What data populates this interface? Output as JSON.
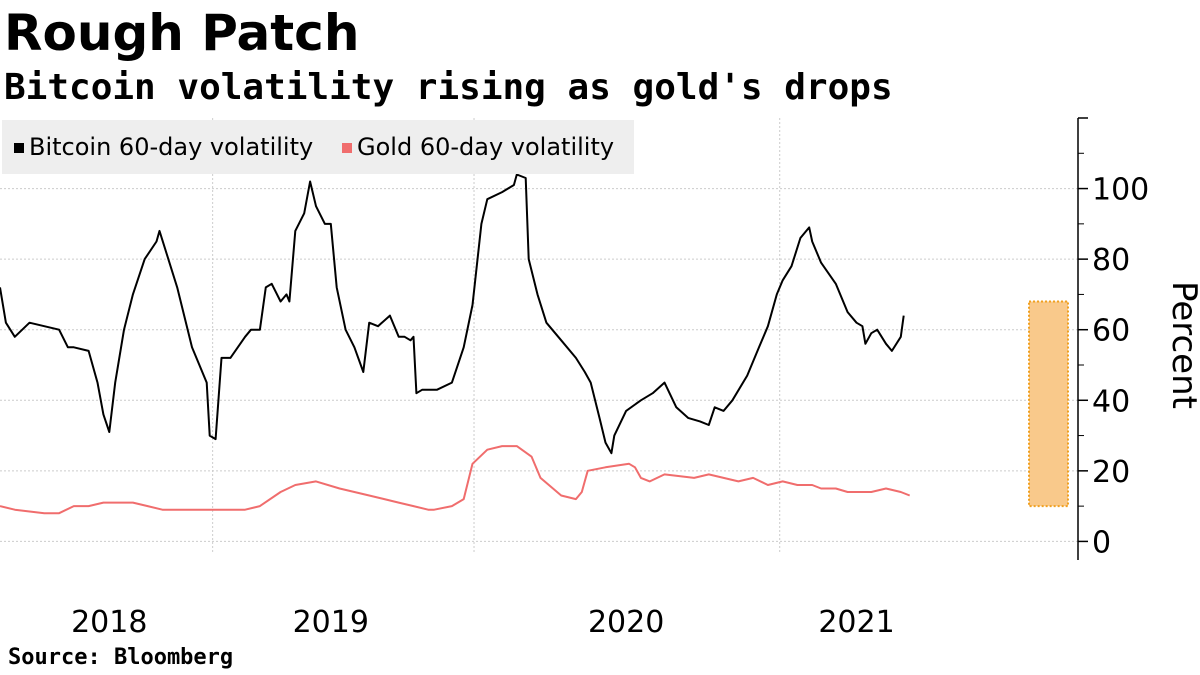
{
  "header": {
    "title": "Rough Patch",
    "subtitle": "Bitcoin volatility rising as gold's drops"
  },
  "footer": {
    "source": "Source: Bloomberg"
  },
  "colors": {
    "bitcoin": "#000000",
    "gold": "#f06d6d",
    "highlight_fill": "#f9c98b",
    "highlight_border": "#f0a020",
    "grid": "#cccccc",
    "legend_bg": "#eeeeee"
  },
  "chart_data": {
    "type": "line",
    "title": "Rough Patch",
    "subtitle": "Bitcoin volatility rising as gold's drops",
    "ylabel": "Percent",
    "xlabel": "",
    "ylim": [
      -3,
      120
    ],
    "yticks": [
      0,
      20,
      40,
      60,
      80,
      100
    ],
    "xlim": [
      2017.55,
      2021.2
    ],
    "xticks": [
      {
        "label": "2018",
        "value": 2017.92
      },
      {
        "label": "2019",
        "value": 2018.67
      },
      {
        "label": "2020",
        "value": 2019.67
      },
      {
        "label": "2021",
        "value": 2020.45
      }
    ],
    "grid": true,
    "legend_position": "top-left",
    "highlight_range": {
      "x": [
        2021.05,
        2021.15
      ],
      "y": [
        10,
        68
      ]
    },
    "series": [
      {
        "name": "Bitcoin 60-day volatility",
        "color": "#000000",
        "points": [
          [
            2017.55,
            72
          ],
          [
            2017.57,
            62
          ],
          [
            2017.6,
            58
          ],
          [
            2017.65,
            62
          ],
          [
            2017.7,
            61
          ],
          [
            2017.75,
            60
          ],
          [
            2017.78,
            55
          ],
          [
            2017.8,
            55
          ],
          [
            2017.85,
            54
          ],
          [
            2017.88,
            45
          ],
          [
            2017.9,
            36
          ],
          [
            2017.92,
            31
          ],
          [
            2017.94,
            45
          ],
          [
            2017.97,
            60
          ],
          [
            2018.0,
            70
          ],
          [
            2018.04,
            80
          ],
          [
            2018.08,
            85
          ],
          [
            2018.09,
            88
          ],
          [
            2018.15,
            72
          ],
          [
            2018.2,
            55
          ],
          [
            2018.25,
            45
          ],
          [
            2018.26,
            30
          ],
          [
            2018.28,
            29
          ],
          [
            2018.3,
            52
          ],
          [
            2018.33,
            52
          ],
          [
            2018.38,
            58
          ],
          [
            2018.4,
            60
          ],
          [
            2018.43,
            60
          ],
          [
            2018.45,
            72
          ],
          [
            2018.47,
            73
          ],
          [
            2018.5,
            68
          ],
          [
            2018.52,
            70
          ],
          [
            2018.53,
            68
          ],
          [
            2018.55,
            88
          ],
          [
            2018.58,
            93
          ],
          [
            2018.6,
            102
          ],
          [
            2018.62,
            95
          ],
          [
            2018.65,
            90
          ],
          [
            2018.67,
            90
          ],
          [
            2018.69,
            72
          ],
          [
            2018.72,
            60
          ],
          [
            2018.75,
            55
          ],
          [
            2018.78,
            48
          ],
          [
            2018.8,
            62
          ],
          [
            2018.83,
            61
          ],
          [
            2018.87,
            64
          ],
          [
            2018.9,
            58
          ],
          [
            2018.92,
            58
          ],
          [
            2018.94,
            57
          ],
          [
            2018.95,
            58
          ],
          [
            2018.96,
            42
          ],
          [
            2018.98,
            43
          ],
          [
            2019.03,
            43
          ],
          [
            2019.08,
            45
          ],
          [
            2019.12,
            55
          ],
          [
            2019.15,
            67
          ],
          [
            2019.18,
            90
          ],
          [
            2019.2,
            97
          ],
          [
            2019.25,
            99
          ],
          [
            2019.29,
            101
          ],
          [
            2019.3,
            104
          ],
          [
            2019.33,
            103
          ],
          [
            2019.34,
            80
          ],
          [
            2019.37,
            70
          ],
          [
            2019.4,
            62
          ],
          [
            2019.45,
            57
          ],
          [
            2019.5,
            52
          ],
          [
            2019.53,
            48
          ],
          [
            2019.55,
            45
          ],
          [
            2019.58,
            35
          ],
          [
            2019.6,
            28
          ],
          [
            2019.62,
            25
          ],
          [
            2019.63,
            30
          ],
          [
            2019.67,
            37
          ],
          [
            2019.72,
            40
          ],
          [
            2019.76,
            42
          ],
          [
            2019.8,
            45
          ],
          [
            2019.84,
            38
          ],
          [
            2019.88,
            35
          ],
          [
            2019.92,
            34
          ],
          [
            2019.95,
            33
          ],
          [
            2019.97,
            38
          ],
          [
            2020.0,
            37
          ],
          [
            2020.03,
            40
          ],
          [
            2020.08,
            47
          ],
          [
            2020.12,
            55
          ],
          [
            2020.15,
            61
          ],
          [
            2020.18,
            70
          ],
          [
            2020.2,
            74
          ],
          [
            2020.23,
            78
          ],
          [
            2020.26,
            86
          ],
          [
            2020.29,
            89
          ],
          [
            2020.3,
            85
          ],
          [
            2020.33,
            79
          ],
          [
            2020.38,
            73
          ],
          [
            2020.42,
            65
          ],
          [
            2020.45,
            62
          ],
          [
            2020.47,
            61
          ],
          [
            2020.48,
            56
          ],
          [
            2020.5,
            59
          ],
          [
            2020.52,
            60
          ],
          [
            2020.55,
            56
          ],
          [
            2020.57,
            54
          ],
          [
            2020.6,
            58
          ],
          [
            2020.61,
            64
          ]
        ]
      },
      {
        "name": "Gold 60-day volatility",
        "color": "#f06d6d",
        "points": [
          [
            2017.55,
            10
          ],
          [
            2017.6,
            9
          ],
          [
            2017.7,
            8
          ],
          [
            2017.75,
            8
          ],
          [
            2017.8,
            10
          ],
          [
            2017.85,
            10
          ],
          [
            2017.9,
            11
          ],
          [
            2017.95,
            11
          ],
          [
            2018.0,
            11
          ],
          [
            2018.05,
            10
          ],
          [
            2018.1,
            9
          ],
          [
            2018.2,
            9
          ],
          [
            2018.3,
            9
          ],
          [
            2018.38,
            9
          ],
          [
            2018.43,
            10
          ],
          [
            2018.5,
            14
          ],
          [
            2018.55,
            16
          ],
          [
            2018.62,
            17
          ],
          [
            2018.7,
            15
          ],
          [
            2018.8,
            13
          ],
          [
            2018.9,
            11
          ],
          [
            2018.95,
            10
          ],
          [
            2019.0,
            9
          ],
          [
            2019.02,
            9
          ],
          [
            2019.08,
            10
          ],
          [
            2019.12,
            12
          ],
          [
            2019.15,
            22
          ],
          [
            2019.2,
            26
          ],
          [
            2019.25,
            27
          ],
          [
            2019.3,
            27
          ],
          [
            2019.35,
            24
          ],
          [
            2019.38,
            18
          ],
          [
            2019.45,
            13
          ],
          [
            2019.5,
            12
          ],
          [
            2019.52,
            14
          ],
          [
            2019.54,
            20
          ],
          [
            2019.6,
            21
          ],
          [
            2019.68,
            22
          ],
          [
            2019.7,
            21
          ],
          [
            2019.72,
            18
          ],
          [
            2019.75,
            17
          ],
          [
            2019.8,
            19
          ],
          [
            2019.9,
            18
          ],
          [
            2019.95,
            19
          ],
          [
            2020.0,
            18
          ],
          [
            2020.05,
            17
          ],
          [
            2020.1,
            18
          ],
          [
            2020.15,
            16
          ],
          [
            2020.2,
            17
          ],
          [
            2020.25,
            16
          ],
          [
            2020.3,
            16
          ],
          [
            2020.33,
            15
          ],
          [
            2020.38,
            15
          ],
          [
            2020.42,
            14
          ],
          [
            2020.45,
            14
          ],
          [
            2020.5,
            14
          ],
          [
            2020.55,
            15
          ],
          [
            2020.6,
            14
          ],
          [
            2020.63,
            13
          ]
        ]
      }
    ]
  }
}
